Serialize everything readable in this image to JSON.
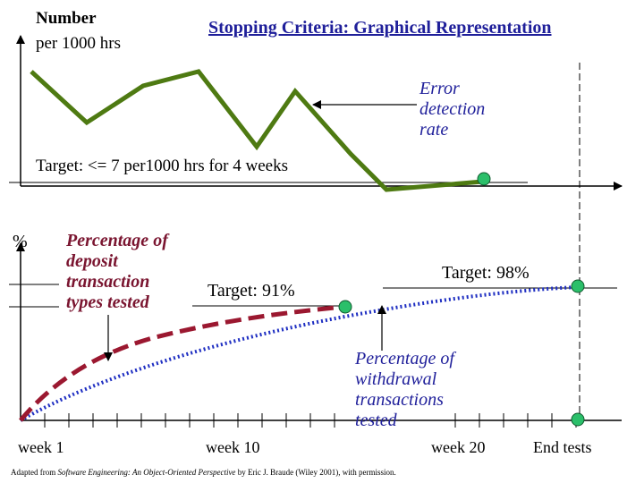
{
  "header": {
    "y_label_line1": "Number",
    "y_label_line2": "per 1000 hrs",
    "title": "Stopping Criteria: Graphical Representation"
  },
  "top_chart": {
    "series_label": [
      "Error",
      "detection",
      "rate"
    ],
    "target_label": "Target: <= 7 per1000 hrs for 4 weeks"
  },
  "bottom_chart": {
    "y_label": "%",
    "deposit_label": [
      "Percentage of",
      "deposit",
      "transaction",
      "types tested"
    ],
    "withdrawal_label": [
      "Percentage of",
      "withdrawal",
      "transactions",
      "tested"
    ],
    "target_91": "Target: 91%",
    "target_98": "Target: 98%",
    "x_labels": {
      "week1": "week 1",
      "week10": "week 10",
      "week20": "week 20",
      "end": "End tests"
    }
  },
  "footer": {
    "credit_prefix": "Adapted from ",
    "credit_title": "Software Engineering: An Object-Oriented Perspective",
    "credit_suffix": " by Eric J. Braude (Wiley 2001), with permission."
  },
  "colors": {
    "error_line": "#4e7a12",
    "milestone_dot": "#2bbf6a",
    "withdrawal_curve": "#1f2fc2",
    "deposit_curve": "#9b1830",
    "text_navy": "#1f1f9a",
    "text_maroon": "#7a1530"
  }
}
